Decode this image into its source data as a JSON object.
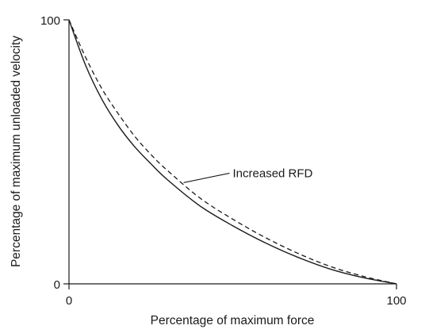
{
  "chart_data": {
    "type": "line",
    "title": "",
    "xlabel": "Percentage of maximum force",
    "ylabel": "Percentage of maximum unloaded velocity",
    "xlim": [
      0,
      100
    ],
    "ylim": [
      0,
      100
    ],
    "x_ticks": [
      "0",
      "100"
    ],
    "y_ticks": [
      "0",
      "100"
    ],
    "grid": false,
    "series": [
      {
        "style": "solid",
        "x": [
          0,
          5,
          10,
          15,
          20,
          25,
          30,
          40,
          50,
          60,
          70,
          80,
          90,
          100
        ],
        "y": [
          100,
          83,
          70,
          60,
          52,
          45.5,
          39.5,
          29.5,
          22,
          15.5,
          10,
          5.5,
          2.3,
          0
        ]
      },
      {
        "style": "dashed",
        "x": [
          0,
          5,
          10,
          15,
          20,
          25,
          30,
          40,
          50,
          60,
          70,
          80,
          90,
          100
        ],
        "y": [
          100,
          86,
          74,
          64.5,
          56,
          49,
          43,
          32.5,
          24.5,
          17.5,
          11.5,
          6.5,
          2.8,
          0
        ]
      }
    ],
    "annotations": [
      {
        "text": "Increased RFD",
        "target_series": 1,
        "target_x": 35,
        "label_x": 50,
        "label_y": 41
      }
    ]
  }
}
